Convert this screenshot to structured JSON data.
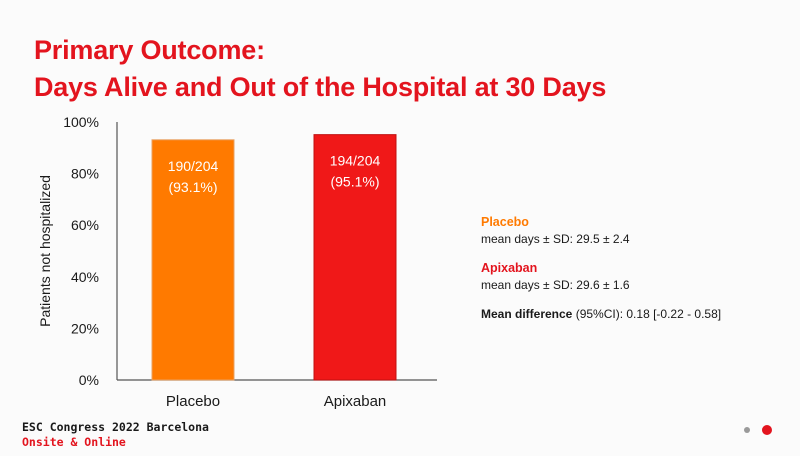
{
  "slide": {
    "title_line1": "Primary Outcome:",
    "title_line2": "Days Alive and Out of the Hospital at 30 Days",
    "footer_line1": "ESC Congress 2022 Barcelona",
    "footer_line2": "Onsite & Online"
  },
  "stats": {
    "placebo_name": "Placebo",
    "placebo_line": "mean days ± SD: 29.5 ± 2.4",
    "apixaban_name": "Apixaban",
    "apixaban_line": "mean days ± SD: 29.6 ± 1.6",
    "mean_diff_label": "Mean difference",
    "mean_diff_value": "(95%CI): 0.18 [-0.22 - 0.58]"
  },
  "colors": {
    "accent": "#e3141e",
    "placebo": "#ff7a00",
    "apixaban": "#f01818"
  },
  "chart_data": {
    "type": "bar",
    "title": "",
    "xlabel": "",
    "ylabel": "Patients not hospitalized",
    "categories": [
      "Placebo",
      "Apixaban"
    ],
    "values": [
      93.1,
      95.1
    ],
    "bar_labels": [
      [
        "190/204",
        "(93.1%)"
      ],
      [
        "194/204",
        "(95.1%)"
      ]
    ],
    "bar_colors": [
      "#ff7a00",
      "#f01818"
    ],
    "ylim": [
      0,
      100
    ],
    "yticks": [
      "0%",
      "20%",
      "40%",
      "60%",
      "80%",
      "100%"
    ],
    "ytick_values": [
      0,
      20,
      40,
      60,
      80,
      100
    ],
    "grid": false,
    "legend": "none"
  }
}
